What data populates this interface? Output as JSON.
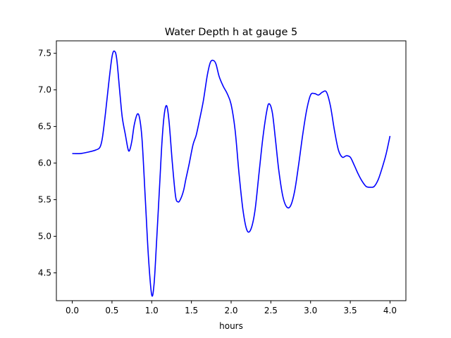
{
  "chart_data": {
    "type": "line",
    "title": "Water Depth h at gauge 5",
    "xlabel": "hours",
    "ylabel": "",
    "xlim": [
      -0.2,
      4.2
    ],
    "ylim": [
      4.12,
      7.67
    ],
    "xticks": [
      0.0,
      0.5,
      1.0,
      1.5,
      2.0,
      2.5,
      3.0,
      3.5,
      4.0
    ],
    "xtick_labels": [
      "0.0",
      "0.5",
      "1.0",
      "1.5",
      "2.0",
      "2.5",
      "3.0",
      "3.5",
      "4.0"
    ],
    "yticks": [
      4.5,
      5.0,
      5.5,
      6.0,
      6.5,
      7.0,
      7.5
    ],
    "ytick_labels": [
      "4.5",
      "5.0",
      "5.5",
      "6.0",
      "6.5",
      "7.0",
      "7.5"
    ],
    "grid": false,
    "legend": "none",
    "series": [
      {
        "color": "#0000ff",
        "x": [
          0.0,
          0.1,
          0.2,
          0.3,
          0.35,
          0.38,
          0.42,
          0.46,
          0.5,
          0.53,
          0.56,
          0.6,
          0.63,
          0.67,
          0.7,
          0.72,
          0.75,
          0.78,
          0.82,
          0.85,
          0.88,
          0.92,
          0.96,
          1.0,
          1.03,
          1.06,
          1.1,
          1.13,
          1.16,
          1.19,
          1.22,
          1.26,
          1.3,
          1.33,
          1.36,
          1.4,
          1.43,
          1.47,
          1.52,
          1.56,
          1.6,
          1.65,
          1.7,
          1.74,
          1.78,
          1.81,
          1.85,
          1.9,
          1.95,
          2.0,
          2.05,
          2.1,
          2.15,
          2.2,
          2.25,
          2.3,
          2.35,
          2.4,
          2.45,
          2.48,
          2.52,
          2.56,
          2.6,
          2.65,
          2.7,
          2.75,
          2.8,
          2.85,
          2.9,
          2.95,
          3.0,
          3.05,
          3.1,
          3.15,
          3.2,
          3.25,
          3.3,
          3.35,
          3.4,
          3.45,
          3.5,
          3.55,
          3.6,
          3.65,
          3.7,
          3.75,
          3.8,
          3.85,
          3.9,
          3.95,
          4.0
        ],
        "y": [
          6.13,
          6.13,
          6.15,
          6.18,
          6.22,
          6.35,
          6.7,
          7.1,
          7.45,
          7.53,
          7.42,
          6.95,
          6.62,
          6.38,
          6.2,
          6.17,
          6.3,
          6.52,
          6.67,
          6.6,
          6.3,
          5.5,
          4.7,
          4.2,
          4.35,
          4.9,
          5.7,
          6.3,
          6.68,
          6.78,
          6.55,
          6.0,
          5.55,
          5.47,
          5.5,
          5.62,
          5.78,
          5.98,
          6.25,
          6.38,
          6.58,
          6.85,
          7.2,
          7.38,
          7.4,
          7.35,
          7.18,
          7.05,
          6.95,
          6.8,
          6.45,
          5.85,
          5.35,
          5.08,
          5.1,
          5.35,
          5.85,
          6.35,
          6.72,
          6.81,
          6.68,
          6.3,
          5.9,
          5.55,
          5.4,
          5.42,
          5.62,
          5.98,
          6.38,
          6.72,
          6.93,
          6.95,
          6.93,
          6.97,
          6.97,
          6.78,
          6.45,
          6.18,
          6.08,
          6.1,
          6.08,
          5.97,
          5.85,
          5.75,
          5.68,
          5.67,
          5.68,
          5.77,
          5.93,
          6.12,
          6.37
        ]
      }
    ]
  }
}
